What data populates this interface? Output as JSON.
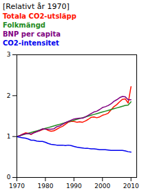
{
  "chart_data": {
    "type": "line",
    "title": "[Relativt år 1970]",
    "x": [
      1970,
      1971,
      1972,
      1973,
      1974,
      1975,
      1976,
      1977,
      1978,
      1979,
      1980,
      1981,
      1982,
      1983,
      1984,
      1985,
      1986,
      1987,
      1988,
      1989,
      1990,
      1991,
      1992,
      1993,
      1994,
      1995,
      1996,
      1997,
      1998,
      1999,
      2000,
      2001,
      2002,
      2003,
      2004,
      2005,
      2006,
      2007,
      2008,
      2009,
      2010
    ],
    "series": [
      {
        "name": "Totala CO2-utsläpp",
        "color": "#ff1100",
        "values": [
          1.0,
          1.02,
          1.06,
          1.09,
          1.08,
          1.05,
          1.1,
          1.12,
          1.14,
          1.17,
          1.19,
          1.15,
          1.13,
          1.14,
          1.18,
          1.22,
          1.25,
          1.3,
          1.35,
          1.37,
          1.37,
          1.35,
          1.36,
          1.35,
          1.38,
          1.42,
          1.47,
          1.48,
          1.46,
          1.48,
          1.52,
          1.54,
          1.57,
          1.65,
          1.73,
          1.78,
          1.85,
          1.91,
          1.92,
          1.82,
          2.22
        ]
      },
      {
        "name": "Folkmängd",
        "color": "#228b22",
        "values": [
          1.0,
          1.02,
          1.04,
          1.06,
          1.08,
          1.1,
          1.12,
          1.14,
          1.16,
          1.18,
          1.2,
          1.22,
          1.24,
          1.26,
          1.28,
          1.3,
          1.32,
          1.34,
          1.36,
          1.38,
          1.4,
          1.42,
          1.44,
          1.46,
          1.48,
          1.5,
          1.52,
          1.54,
          1.56,
          1.58,
          1.6,
          1.62,
          1.64,
          1.66,
          1.68,
          1.7,
          1.72,
          1.74,
          1.76,
          1.77,
          1.85
        ]
      },
      {
        "name": "BNP per capita",
        "color": "#800080",
        "values": [
          1.0,
          1.02,
          1.05,
          1.07,
          1.07,
          1.06,
          1.09,
          1.12,
          1.15,
          1.19,
          1.18,
          1.18,
          1.18,
          1.19,
          1.24,
          1.26,
          1.3,
          1.34,
          1.37,
          1.4,
          1.43,
          1.44,
          1.45,
          1.45,
          1.48,
          1.52,
          1.56,
          1.6,
          1.62,
          1.66,
          1.71,
          1.73,
          1.76,
          1.8,
          1.86,
          1.9,
          1.95,
          1.98,
          1.97,
          1.9,
          1.9
        ]
      },
      {
        "name": "CO2-intensitet",
        "color": "#0000ee",
        "values": [
          1.0,
          0.98,
          0.97,
          0.96,
          0.94,
          0.91,
          0.91,
          0.89,
          0.88,
          0.88,
          0.86,
          0.83,
          0.81,
          0.8,
          0.79,
          0.79,
          0.79,
          0.78,
          0.79,
          0.78,
          0.76,
          0.74,
          0.73,
          0.72,
          0.71,
          0.71,
          0.7,
          0.7,
          0.69,
          0.68,
          0.68,
          0.68,
          0.67,
          0.66,
          0.66,
          0.66,
          0.66,
          0.66,
          0.65,
          0.63,
          0.62
        ]
      }
    ],
    "xlim": [
      1970,
      2012
    ],
    "xticks": [
      1970,
      1980,
      1990,
      2000,
      2010
    ],
    "ylim": [
      0,
      3
    ],
    "yticks": [
      0,
      1,
      2,
      3
    ],
    "grid": false,
    "legend": "upper left"
  }
}
